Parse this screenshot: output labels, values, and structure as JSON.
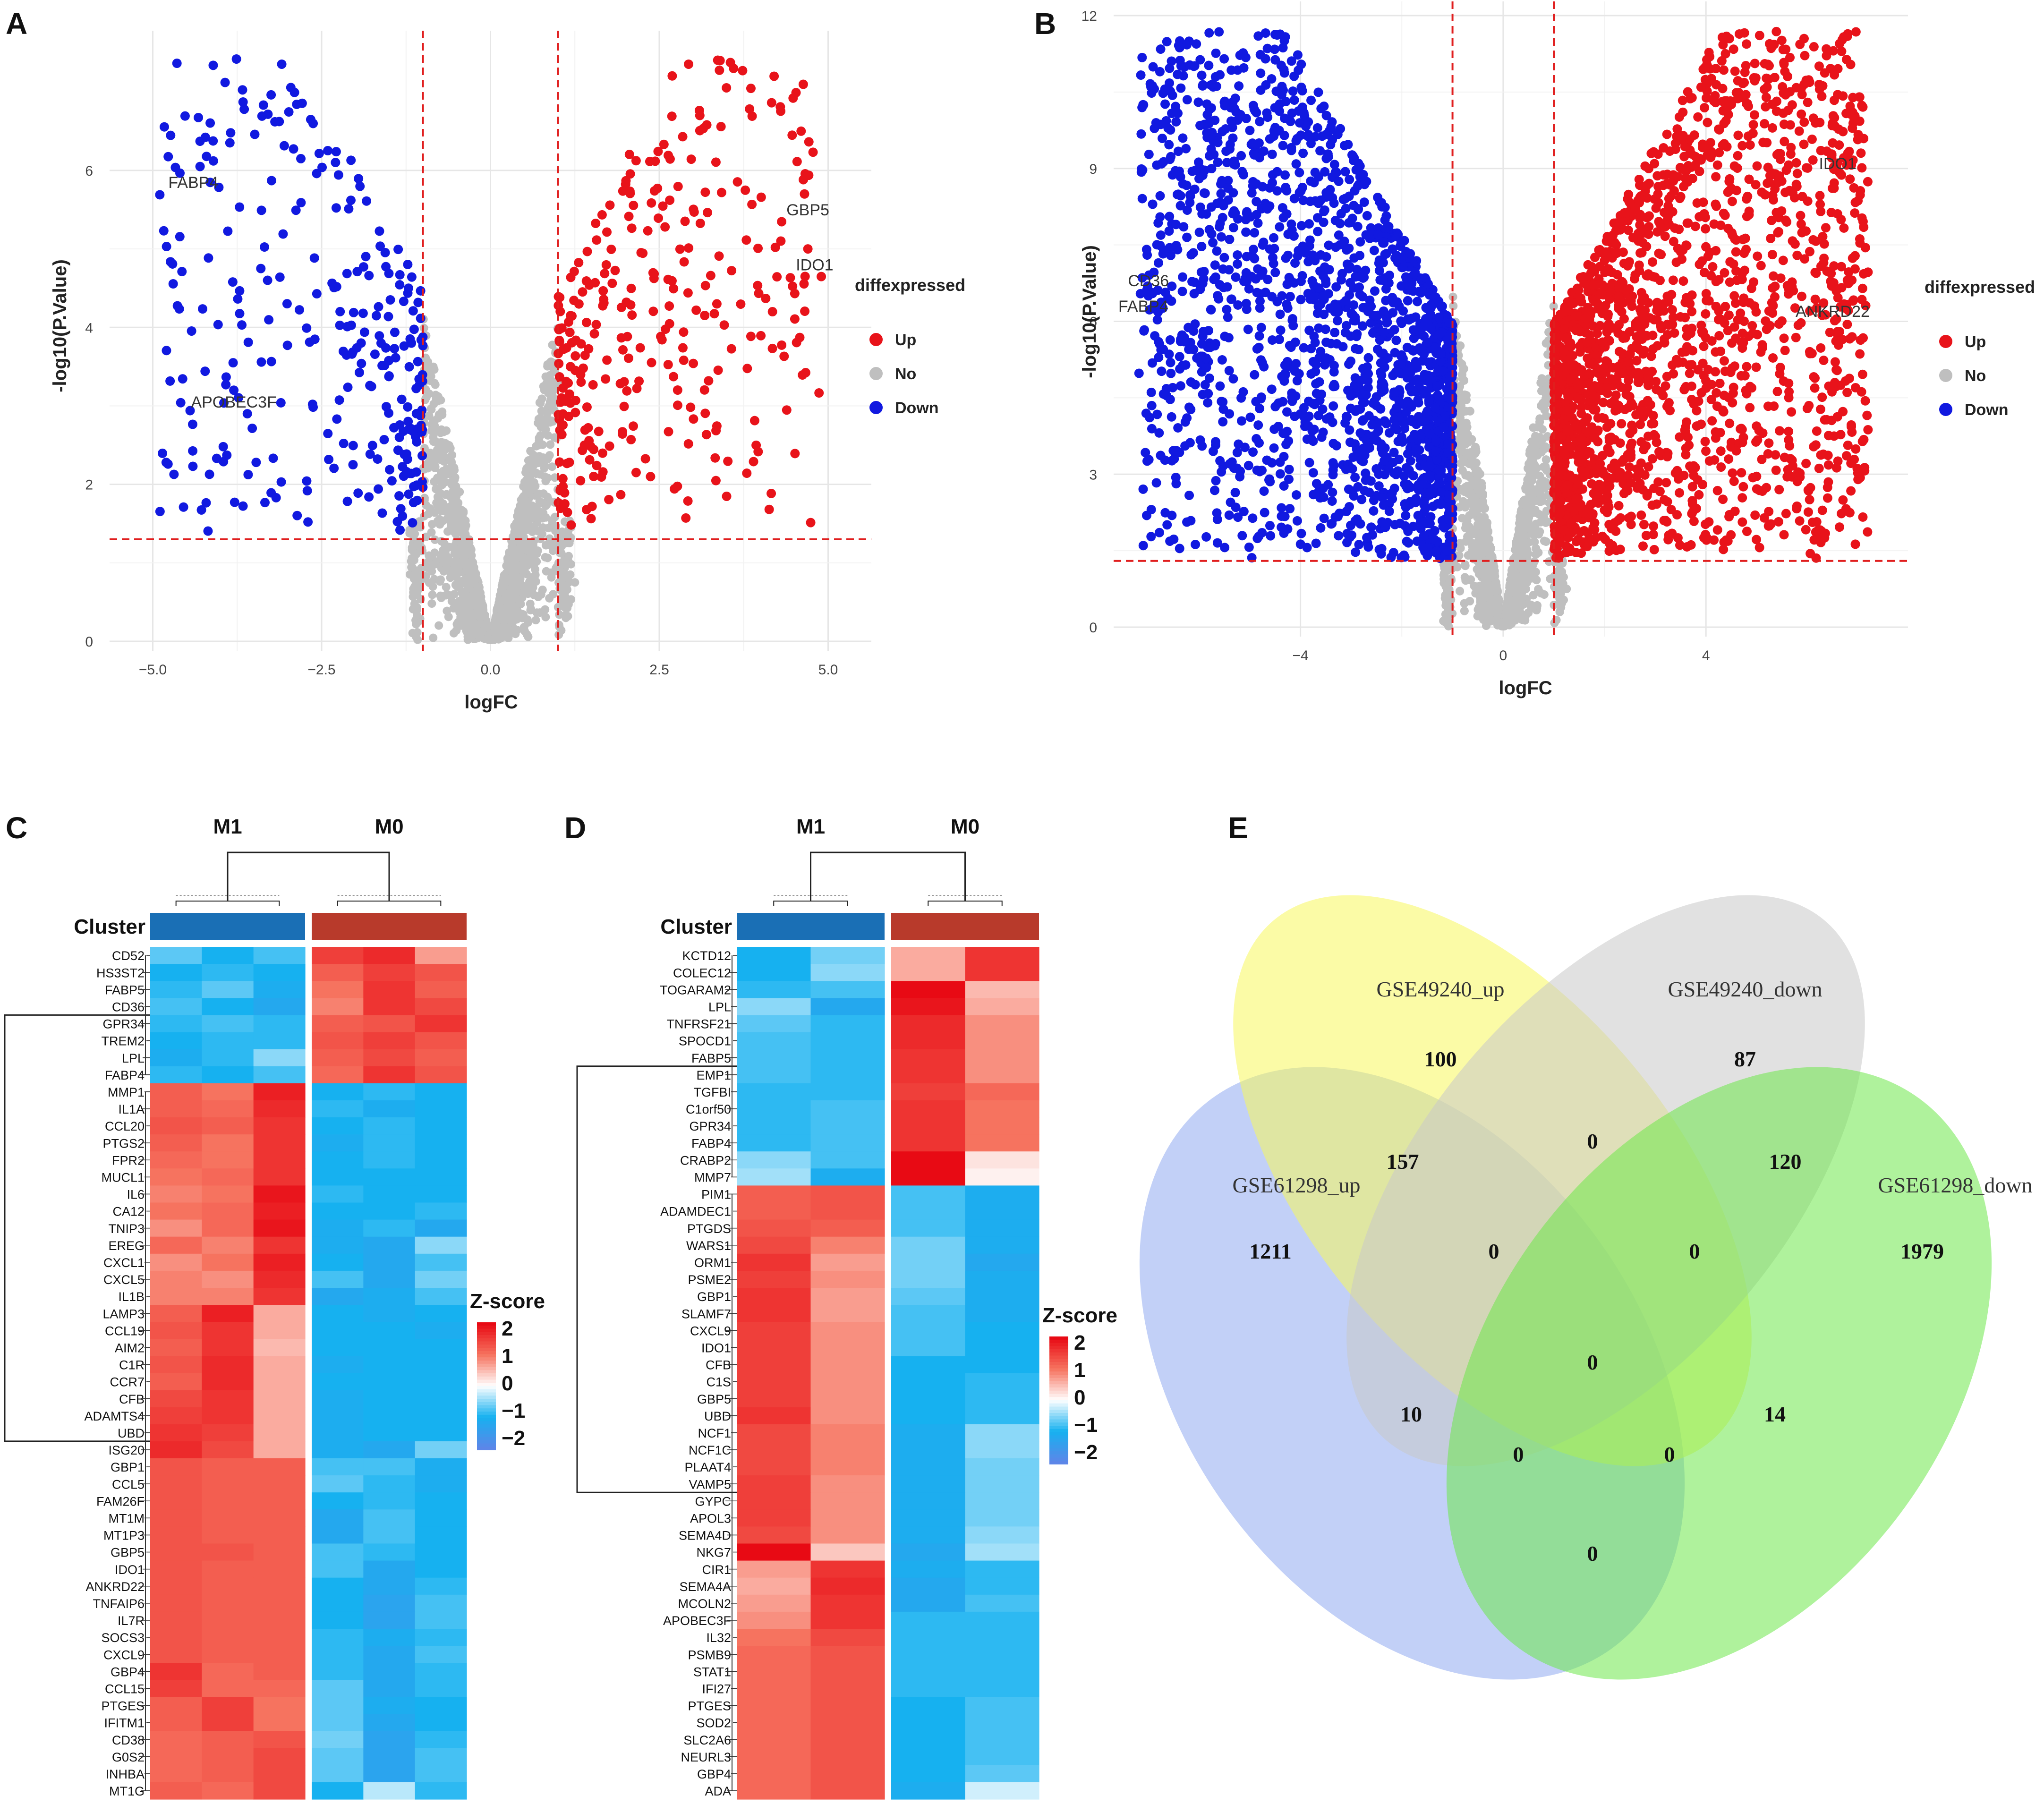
{
  "panels": {
    "A": "A",
    "B": "B",
    "C": "C",
    "D": "D",
    "E": "E"
  },
  "chart_data": [
    {
      "type": "scatter",
      "panel": "A",
      "xlabel": "logFC",
      "ylabel": "-log10(P.Value)",
      "xlim": [
        -5.5,
        5.5
      ],
      "ylim": [
        0,
        7.6
      ],
      "xticks": [
        "-5.0",
        "-2.5",
        "0.0",
        "2.5",
        "5.0"
      ],
      "xtick_values": [
        -5,
        -2.5,
        0,
        2.5,
        5
      ],
      "yticks": [
        "0",
        "2",
        "4",
        "6"
      ],
      "ytick_values": [
        0,
        2,
        4,
        6
      ],
      "thresholds": {
        "logfc": [
          -1,
          1
        ],
        "p": 1.3
      },
      "legend": {
        "title": "diffexpressed",
        "entries": [
          "Up",
          "No",
          "Down"
        ],
        "colors": [
          "#e8131a",
          "#bfbfbf",
          "#1119e0"
        ]
      },
      "labels": [
        {
          "text": "FABP4",
          "x": -4.4,
          "y": 5.85
        },
        {
          "text": "APOBEC3F",
          "x": -3.8,
          "y": 3.05
        },
        {
          "text": "GBP5",
          "x": 4.7,
          "y": 5.5
        },
        {
          "text": "IDO1",
          "x": 4.8,
          "y": 4.8
        }
      ],
      "highlight_points": [
        {
          "x": -4.3,
          "y": 6.05
        },
        {
          "x": -3.8,
          "y": 3.2
        },
        {
          "x": -3.6,
          "y": 2.9
        },
        {
          "x": -3.4,
          "y": 4.75
        },
        {
          "x": -3.3,
          "y": 4.6
        },
        {
          "x": 4.6,
          "y": 6.5
        },
        {
          "x": 4.65,
          "y": 5.7
        },
        {
          "x": 4.3,
          "y": 5.1
        },
        {
          "x": 4.7,
          "y": 5.0
        },
        {
          "x": 4.2,
          "y": 7.2
        },
        {
          "x": 3.4,
          "y": 7.4
        },
        {
          "x": 3.6,
          "y": 7.3
        },
        {
          "x": 3.1,
          "y": 6.7
        }
      ],
      "n_up": 300,
      "n_down": 280,
      "n_no": 1600
    },
    {
      "type": "scatter",
      "panel": "B",
      "xlabel": "logFC",
      "ylabel": "-log10(P.Value)",
      "xlim": [
        -7.5,
        7.8
      ],
      "ylim": [
        0,
        12
      ],
      "xticks": [
        "-4",
        "0",
        "4"
      ],
      "xtick_values": [
        -4,
        0,
        4
      ],
      "yticks": [
        "0",
        "3",
        "6",
        "9",
        "12"
      ],
      "ytick_values": [
        0,
        3,
        6,
        9,
        12
      ],
      "thresholds": {
        "logfc": [
          -1,
          1
        ],
        "p": 1.3
      },
      "legend": {
        "title": "diffexpressed",
        "entries": [
          "Up",
          "No",
          "Down"
        ],
        "colors": [
          "#e8131a",
          "#bfbfbf",
          "#1119e0"
        ]
      },
      "labels": [
        {
          "text": "CD36",
          "x": -7.0,
          "y": 6.8
        },
        {
          "text": "FABP4",
          "x": -7.1,
          "y": 6.3
        },
        {
          "text": "IDO1",
          "x": 6.6,
          "y": 9.1
        },
        {
          "text": "ANKRD22",
          "x": 6.5,
          "y": 6.2
        }
      ],
      "highlight_points": [
        {
          "x": -7.0,
          "y": 6.5
        },
        {
          "x": -6.7,
          "y": 7.4
        },
        {
          "x": -6.8,
          "y": 5.6
        },
        {
          "x": -6.0,
          "y": 8.8
        },
        {
          "x": 6.5,
          "y": 9.5
        },
        {
          "x": 6.8,
          "y": 9.3
        },
        {
          "x": 6.9,
          "y": 6.4
        },
        {
          "x": 6.6,
          "y": 5.8
        }
      ],
      "n_up": 1900,
      "n_down": 1800,
      "n_no": 3000
    },
    {
      "type": "heatmap",
      "panel": "C",
      "groups": [
        "M1",
        "M0"
      ],
      "annotation_label": "Cluster",
      "annotation_colors": [
        "#1a6fb5",
        "#b83a2b"
      ],
      "legend": {
        "title": "Z-score",
        "ticks": [
          "2",
          "1",
          "0",
          "−1",
          "−2"
        ]
      },
      "rows": [
        "CD52",
        "HS3ST2",
        "FABP5",
        "CD36",
        "GPR34",
        "TREM2",
        "LPL",
        "FABP4",
        "MMP1",
        "IL1A",
        "CCL20",
        "PTGS2",
        "FPR2",
        "MUCL1",
        "IL6",
        "CA12",
        "TNIP3",
        "EREG",
        "CXCL1",
        "CXCL5",
        "IL1B",
        "LAMP3",
        "CCL19",
        "AIM2",
        "C1R",
        "CCR7",
        "CFB",
        "ADAMTS4",
        "UBD",
        "ISG20",
        "GBP1",
        "CCL5",
        "FAM26F",
        "MT1M",
        "MT1P3",
        "GBP5",
        "IDO1",
        "ANKRD22",
        "TNFAIP6",
        "IL7R",
        "SOCS3",
        "CXCL9",
        "GBP4",
        "CCL15",
        "PTGES",
        "IFITM1",
        "CD38",
        "G0S2",
        "INHBA",
        "MT1G"
      ],
      "values": [
        [
          -0.7,
          -1.0,
          -0.8,
          1.5,
          1.7,
          0.7
        ],
        [
          -1.0,
          -0.9,
          -1.0,
          1.2,
          1.5,
          1.3
        ],
        [
          -0.9,
          -0.7,
          -1.1,
          1.0,
          1.6,
          1.2
        ],
        [
          -0.8,
          -1.0,
          -1.2,
          0.9,
          1.6,
          1.4
        ],
        [
          -0.9,
          -0.8,
          -0.9,
          1.2,
          1.3,
          1.6
        ],
        [
          -1.0,
          -0.9,
          -0.9,
          1.3,
          1.5,
          1.3
        ],
        [
          -1.1,
          -0.9,
          -0.5,
          1.2,
          1.4,
          1.2
        ],
        [
          -0.9,
          -1.0,
          -0.8,
          1.1,
          1.6,
          1.3
        ],
        [
          1.2,
          1.0,
          1.8,
          -1.0,
          -0.9,
          -1.0
        ],
        [
          1.2,
          1.1,
          1.7,
          -0.9,
          -1.1,
          -1.0
        ],
        [
          1.3,
          1.2,
          1.6,
          -1.0,
          -0.9,
          -1.0
        ],
        [
          1.2,
          1.0,
          1.6,
          -1.1,
          -0.9,
          -1.0
        ],
        [
          1.1,
          1.0,
          1.6,
          -1.0,
          -0.9,
          -1.0
        ],
        [
          1.0,
          1.1,
          1.6,
          -1.0,
          -1.0,
          -1.0
        ],
        [
          0.9,
          1.0,
          1.9,
          -0.9,
          -1.0,
          -1.0
        ],
        [
          1.0,
          1.1,
          1.8,
          -1.0,
          -1.0,
          -0.9
        ],
        [
          0.8,
          1.1,
          1.9,
          -1.1,
          -0.9,
          -1.2
        ],
        [
          1.1,
          0.9,
          1.6,
          -1.1,
          -1.2,
          -0.5
        ],
        [
          0.8,
          1.0,
          1.8,
          -1.0,
          -1.2,
          -0.8
        ],
        [
          0.9,
          0.8,
          1.7,
          -0.8,
          -1.2,
          -0.6
        ],
        [
          0.9,
          0.9,
          1.6,
          -1.2,
          -1.1,
          -0.8
        ],
        [
          1.2,
          1.8,
          0.6,
          -1.0,
          -1.1,
          -1.0
        ],
        [
          1.3,
          1.6,
          0.6,
          -1.0,
          -1.0,
          -1.1
        ],
        [
          1.2,
          1.6,
          0.5,
          -1.0,
          -1.0,
          -1.0
        ],
        [
          1.3,
          1.7,
          0.6,
          -1.1,
          -1.0,
          -1.0
        ],
        [
          1.2,
          1.7,
          0.6,
          -1.0,
          -1.0,
          -1.0
        ],
        [
          1.4,
          1.6,
          0.6,
          -1.1,
          -1.0,
          -1.0
        ],
        [
          1.5,
          1.6,
          0.6,
          -1.1,
          -1.0,
          -1.0
        ],
        [
          1.6,
          1.5,
          0.6,
          -1.1,
          -1.0,
          -1.0
        ],
        [
          1.7,
          1.4,
          0.6,
          -1.1,
          -1.2,
          -0.6
        ],
        [
          1.3,
          1.2,
          1.2,
          -0.8,
          -0.8,
          -1.1
        ],
        [
          1.3,
          1.2,
          1.2,
          -0.7,
          -0.9,
          -1.1
        ],
        [
          1.3,
          1.2,
          1.2,
          -1.0,
          -0.9,
          -1.0
        ],
        [
          1.3,
          1.2,
          1.2,
          -1.2,
          -0.8,
          -1.0
        ],
        [
          1.3,
          1.2,
          1.2,
          -1.2,
          -0.8,
          -1.0
        ],
        [
          1.3,
          1.3,
          1.2,
          -0.8,
          -0.9,
          -1.0
        ],
        [
          1.3,
          1.2,
          1.2,
          -0.8,
          -1.2,
          -1.0
        ],
        [
          1.3,
          1.2,
          1.2,
          -1.0,
          -1.2,
          -0.9
        ],
        [
          1.3,
          1.2,
          1.2,
          -1.0,
          -1.3,
          -0.8
        ],
        [
          1.3,
          1.2,
          1.2,
          -1.0,
          -1.3,
          -0.8
        ],
        [
          1.3,
          1.2,
          1.2,
          -0.9,
          -1.1,
          -0.9
        ],
        [
          1.3,
          1.2,
          1.2,
          -0.9,
          -1.2,
          -0.8
        ],
        [
          1.6,
          1.1,
          1.2,
          -0.9,
          -1.2,
          -0.9
        ],
        [
          1.5,
          1.1,
          1.1,
          -0.7,
          -1.2,
          -0.9
        ],
        [
          1.2,
          1.5,
          1.0,
          -0.7,
          -1.1,
          -1.0
        ],
        [
          1.2,
          1.5,
          1.0,
          -0.7,
          -1.2,
          -1.0
        ],
        [
          1.1,
          1.2,
          1.3,
          -0.6,
          -1.3,
          -0.9
        ],
        [
          1.1,
          1.2,
          1.4,
          -0.7,
          -1.3,
          -0.8
        ],
        [
          1.1,
          1.2,
          1.4,
          -0.7,
          -1.3,
          -0.8
        ],
        [
          1.2,
          1.1,
          1.4,
          -1.0,
          -0.3,
          -0.9
        ]
      ]
    },
    {
      "type": "heatmap",
      "panel": "D",
      "groups": [
        "M1",
        "M0"
      ],
      "annotation_label": "Cluster",
      "annotation_colors": [
        "#1a6fb5",
        "#b83a2b"
      ],
      "legend": {
        "title": "Z-score",
        "ticks": [
          "2",
          "1",
          "0",
          "−1",
          "−2"
        ]
      },
      "rows": [
        "KCTD12",
        "COLEC12",
        "TOGARAM2",
        "LPL",
        "TNFRSF21",
        "SPOCD1",
        "FABP5",
        "EMP1",
        "TGFBI",
        "C1orf50",
        "GPR34",
        "FABP4",
        "CRABP2",
        "MMP7",
        "PIM1",
        "ADAMDEC1",
        "PTGDS",
        "WARS1",
        "ORM1",
        "PSME2",
        "GBP1",
        "SLAMF7",
        "CXCL9",
        "IDO1",
        "CFB",
        "C1S",
        "GBP5",
        "UBD",
        "NCF1",
        "NCF1C",
        "PLAAT4",
        "VAMP5",
        "GYPC",
        "APOL3",
        "SEMA4D",
        "NKG7",
        "CIR1",
        "SEMA4A",
        "MCOLN2",
        "APOBEC3F",
        "IL32",
        "PSMB9",
        "STAT1",
        "IFI27",
        "PTGES",
        "SOD2",
        "SLC2A6",
        "NEURL3",
        "GBP4",
        "ADA"
      ],
      "values": [
        [
          -1.0,
          -0.6,
          0.6,
          1.6
        ],
        [
          -1.0,
          -0.5,
          0.6,
          1.6
        ],
        [
          -0.9,
          -0.8,
          2.0,
          0.5
        ],
        [
          -0.5,
          -1.2,
          1.9,
          0.6
        ],
        [
          -0.7,
          -0.9,
          1.7,
          0.8
        ],
        [
          -0.8,
          -0.9,
          1.7,
          0.8
        ],
        [
          -0.8,
          -0.9,
          1.6,
          0.8
        ],
        [
          -0.8,
          -0.9,
          1.6,
          0.8
        ],
        [
          -0.9,
          -0.9,
          1.5,
          1.1
        ],
        [
          -0.9,
          -0.8,
          1.6,
          1.0
        ],
        [
          -0.9,
          -0.8,
          1.6,
          1.0
        ],
        [
          -0.9,
          -0.8,
          1.6,
          1.0
        ],
        [
          -0.5,
          -0.8,
          2.0,
          0.2
        ],
        [
          -0.4,
          -1.1,
          2.0,
          0.1
        ],
        [
          1.2,
          1.3,
          -0.8,
          -1.1
        ],
        [
          1.2,
          1.3,
          -0.8,
          -1.1
        ],
        [
          1.3,
          1.2,
          -0.8,
          -1.1
        ],
        [
          1.4,
          0.9,
          -0.6,
          -1.1
        ],
        [
          1.6,
          0.7,
          -0.6,
          -1.2
        ],
        [
          1.5,
          0.8,
          -0.6,
          -1.1
        ],
        [
          1.6,
          0.7,
          -0.7,
          -1.1
        ],
        [
          1.6,
          0.7,
          -0.8,
          -1.1
        ],
        [
          1.5,
          0.8,
          -0.8,
          -1.0
        ],
        [
          1.5,
          0.8,
          -0.8,
          -1.0
        ],
        [
          1.5,
          0.8,
          -1.0,
          -1.0
        ],
        [
          1.5,
          0.8,
          -1.0,
          -0.9
        ],
        [
          1.5,
          0.8,
          -1.0,
          -0.9
        ],
        [
          1.6,
          0.8,
          -1.0,
          -0.9
        ],
        [
          1.4,
          0.9,
          -1.1,
          -0.5
        ],
        [
          1.4,
          0.9,
          -1.1,
          -0.5
        ],
        [
          1.4,
          0.9,
          -1.1,
          -0.6
        ],
        [
          1.5,
          0.8,
          -1.1,
          -0.6
        ],
        [
          1.5,
          0.8,
          -1.1,
          -0.6
        ],
        [
          1.5,
          0.8,
          -1.1,
          -0.6
        ],
        [
          1.4,
          0.8,
          -1.1,
          -0.5
        ],
        [
          2.0,
          0.4,
          -1.2,
          -0.4
        ],
        [
          0.7,
          1.6,
          -1.1,
          -0.9
        ],
        [
          0.6,
          1.7,
          -1.2,
          -0.9
        ],
        [
          0.7,
          1.6,
          -1.2,
          -0.8
        ],
        [
          0.8,
          1.6,
          -0.9,
          -0.9
        ],
        [
          1.0,
          1.4,
          -0.9,
          -0.9
        ],
        [
          1.1,
          1.3,
          -0.9,
          -0.9
        ],
        [
          1.1,
          1.3,
          -0.9,
          -0.9
        ],
        [
          1.1,
          1.3,
          -0.9,
          -0.9
        ],
        [
          1.1,
          1.3,
          -1.0,
          -0.8
        ],
        [
          1.1,
          1.3,
          -1.0,
          -0.8
        ],
        [
          1.1,
          1.3,
          -1.0,
          -0.8
        ],
        [
          1.1,
          1.3,
          -1.0,
          -0.8
        ],
        [
          1.1,
          1.3,
          -1.0,
          -0.7
        ],
        [
          1.1,
          1.3,
          -1.1,
          -0.2
        ]
      ]
    },
    {
      "type": "venn",
      "panel": "E",
      "sets": [
        {
          "name": "GSE61298_up",
          "color": "#8faaf0"
        },
        {
          "name": "GSE49240_up",
          "color": "#f7f75c"
        },
        {
          "name": "GSE49240_down",
          "color": "#c8c8c8"
        },
        {
          "name": "GSE61298_down",
          "color": "#6ee84a"
        }
      ],
      "regions": {
        "GSE61298_up_only": 1211,
        "GSE49240_up_only": 100,
        "GSE49240_down_only": 87,
        "GSE61298_down_only": 1979,
        "61298up_49240up": 157,
        "49240up_49240down": 0,
        "49240down_61298down": 120,
        "61298up_49240up_49240down": 0,
        "49240up_49240down_61298down": 0,
        "all_four": 0,
        "61298up_49240down": 10,
        "49240up_61298down": 14,
        "61298up_49240down_61298down": 0,
        "61298up_49240up_61298down": 0,
        "61298up_61298down": 0
      }
    }
  ]
}
